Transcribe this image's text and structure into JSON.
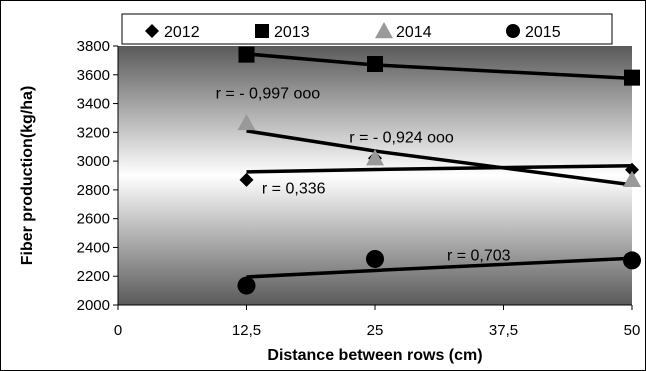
{
  "chart_data": {
    "type": "scatter",
    "xlabel": "Distance between rows (cm)",
    "ylabel": "Fiber production(kg/ha)",
    "xlim": [
      0,
      50
    ],
    "ylim": [
      2000,
      3800
    ],
    "x_ticks": [
      0,
      12.5,
      25,
      37.5,
      50
    ],
    "x_tick_labels": [
      "0",
      "12,5",
      "25",
      "37,5",
      "50"
    ],
    "y_ticks": [
      2000,
      2200,
      2400,
      2600,
      2800,
      3000,
      3200,
      3400,
      3600,
      3800
    ],
    "y_tick_labels": [
      "2000",
      "2200",
      "2400",
      "2600",
      "2800",
      "3000",
      "3200",
      "3400",
      "3600",
      "3800"
    ],
    "legend_position": "top",
    "plot_background": "vertical gradient, dark gray to white to dark gray",
    "grid": false,
    "series": [
      {
        "name": "2012",
        "marker": "diamond",
        "color": "#000000",
        "x": [
          12.5,
          25,
          50
        ],
        "y": [
          2870,
          3020,
          2940
        ],
        "trend_y": [
          2925,
          2942,
          2968
        ]
      },
      {
        "name": "2013",
        "marker": "square",
        "color": "#000000",
        "x": [
          12.5,
          25,
          50
        ],
        "y": [
          3740,
          3675,
          3580
        ],
        "trend_y": [
          3745,
          3668,
          3575
        ]
      },
      {
        "name": "2014",
        "marker": "triangle",
        "color": "#999999",
        "x": [
          12.5,
          25,
          50
        ],
        "y": [
          3265,
          3020,
          2870
        ],
        "trend_y": [
          3210,
          3070,
          2835
        ]
      },
      {
        "name": "2015",
        "marker": "circle",
        "color": "#000000",
        "x": [
          12.5,
          25,
          50
        ],
        "y": [
          2135,
          2320,
          2310
        ],
        "trend_y": [
          2195,
          2240,
          2325
        ]
      }
    ],
    "annotations": [
      {
        "text": "r = - 0,997 ooo",
        "x": 9.5,
        "y": 3435
      },
      {
        "text": "r = - 0,924 ooo",
        "x": 22.5,
        "y": 3130
      },
      {
        "text": "r = 0,336",
        "x": 14,
        "y": 2775
      },
      {
        "text": "r = 0,703",
        "x": 32,
        "y": 2310
      }
    ]
  }
}
